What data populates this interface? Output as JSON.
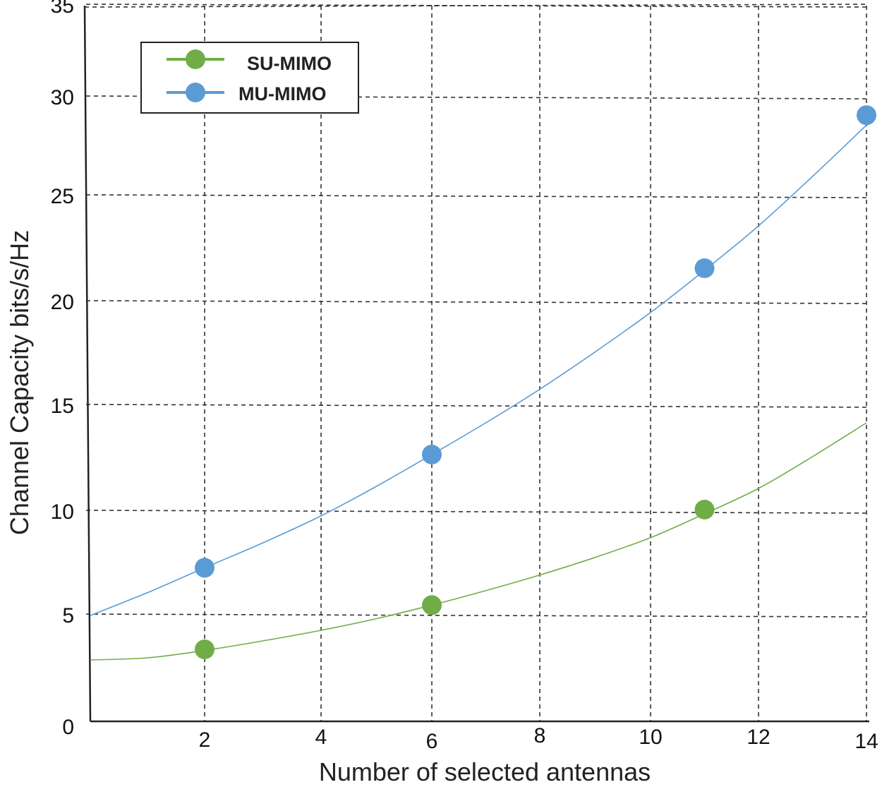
{
  "chart_data": {
    "type": "line",
    "title": "",
    "xlabel": "Number of selected antennas",
    "ylabel": "Channel Capacity bits/s/Hz",
    "xlim": [
      0,
      14
    ],
    "ylim": [
      0,
      36
    ],
    "x_ticks": [
      "2",
      "4",
      "6",
      "8",
      "10",
      "12",
      "14"
    ],
    "y_ticks": [
      "0",
      "5",
      "10",
      "15",
      "20",
      "25",
      "30",
      "35"
    ],
    "grid": true,
    "grid_style": "dashed",
    "legend_position": "top-left",
    "series": [
      {
        "name": "SU-MIMO",
        "color": "#70ad47",
        "markers": [
          {
            "x": 2,
            "y": 3.4
          },
          {
            "x": 6,
            "y": 5.5
          },
          {
            "x": 11,
            "y": 10.1
          }
        ],
        "trend": [
          {
            "x": 0,
            "y": 2.9
          },
          {
            "x": 1,
            "y": 3.0
          },
          {
            "x": 2,
            "y": 3.35
          },
          {
            "x": 3,
            "y": 3.8
          },
          {
            "x": 4,
            "y": 4.3
          },
          {
            "x": 5,
            "y": 4.85
          },
          {
            "x": 6,
            "y": 5.5
          },
          {
            "x": 7,
            "y": 6.2
          },
          {
            "x": 8,
            "y": 6.95
          },
          {
            "x": 9,
            "y": 7.8
          },
          {
            "x": 10,
            "y": 8.75
          },
          {
            "x": 11,
            "y": 9.9
          },
          {
            "x": 12,
            "y": 11.1
          },
          {
            "x": 13,
            "y": 12.6
          },
          {
            "x": 14,
            "y": 14.2
          }
        ]
      },
      {
        "name": "MU-MIMO",
        "color": "#5b9bd5",
        "markers": [
          {
            "x": 2,
            "y": 7.3
          },
          {
            "x": 6,
            "y": 12.7
          },
          {
            "x": 11,
            "y": 21.6
          },
          {
            "x": 14,
            "y": 29.1
          }
        ],
        "trend": [
          {
            "x": 0,
            "y": 5.0
          },
          {
            "x": 1,
            "y": 6.1
          },
          {
            "x": 2,
            "y": 7.3
          },
          {
            "x": 3,
            "y": 8.5
          },
          {
            "x": 4,
            "y": 9.8
          },
          {
            "x": 5,
            "y": 11.2
          },
          {
            "x": 6,
            "y": 12.7
          },
          {
            "x": 7,
            "y": 14.2
          },
          {
            "x": 8,
            "y": 15.8
          },
          {
            "x": 9,
            "y": 17.6
          },
          {
            "x": 10,
            "y": 19.5
          },
          {
            "x": 11,
            "y": 21.5
          },
          {
            "x": 12,
            "y": 23.6
          },
          {
            "x": 13,
            "y": 26.0
          },
          {
            "x": 14,
            "y": 28.6
          }
        ]
      }
    ]
  }
}
